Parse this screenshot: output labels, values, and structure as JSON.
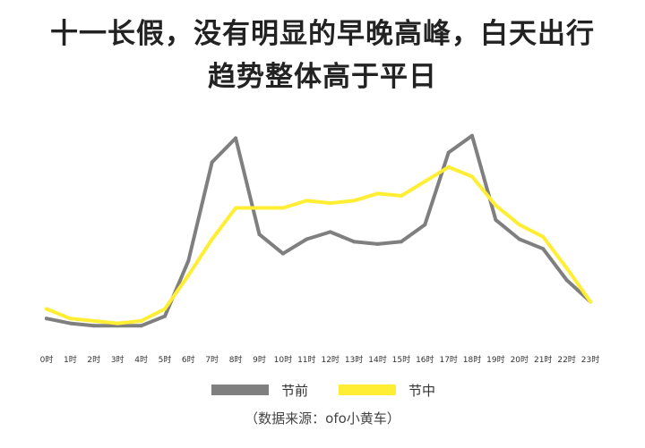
{
  "title_line1": "十一长假，没有明显的早晚高峰，白天出行",
  "title_line2": "趋势整体高于平日",
  "source": "（数据来源：ofo小黄车）",
  "chart_data": {
    "type": "line",
    "categories": [
      "0时",
      "1时",
      "2时",
      "3时",
      "4时",
      "5时",
      "6时",
      "7时",
      "8时",
      "9时",
      "10时",
      "11时",
      "12时",
      "13时",
      "14时",
      "15时",
      "16时",
      "17时",
      "18时",
      "19时",
      "20时",
      "21时",
      "22时",
      "23时"
    ],
    "series": [
      {
        "name": "节前",
        "color": "#7f7f7f",
        "values": [
          4,
          2,
          1,
          1,
          1,
          5,
          28,
          69,
          79,
          39,
          31,
          37,
          40,
          36,
          35,
          36,
          43,
          73,
          80,
          45,
          37,
          33,
          20,
          11
        ]
      },
      {
        "name": "节中",
        "color": "#ffee33",
        "values": [
          8,
          4,
          3,
          2,
          3,
          8,
          22,
          37,
          50,
          50,
          50,
          53,
          52,
          53,
          56,
          55,
          61,
          67,
          63,
          51,
          43,
          38,
          25,
          11
        ]
      }
    ],
    "ylim": [
      0,
      100
    ],
    "grid": false,
    "legend_position": "bottom"
  }
}
